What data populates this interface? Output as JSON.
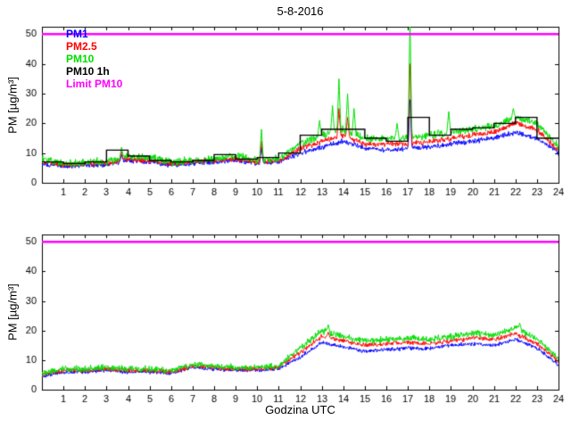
{
  "page": {
    "title": "5-8-2016"
  },
  "chart_data": [
    {
      "type": "line",
      "title": "5-8-2016",
      "ylabel": "PM [µg/m³]",
      "xlabel": "",
      "xlim": [
        0,
        24
      ],
      "ylim": [
        0,
        52.5
      ],
      "xticks": [
        1,
        2,
        3,
        4,
        5,
        6,
        7,
        8,
        9,
        10,
        11,
        12,
        13,
        14,
        15,
        16,
        17,
        18,
        19,
        20,
        21,
        22,
        23,
        24
      ],
      "yticks": [
        0,
        10,
        20,
        30,
        40,
        50
      ],
      "grid": false,
      "legend_position": "top-left-inside",
      "legend_labels": [
        "PM1",
        "PM2.5",
        "PM10",
        "PM10 1h",
        "Limit PM10"
      ],
      "limit": {
        "label": "Limit PM10",
        "value": 50,
        "color": "#ff00ff"
      },
      "x": [
        0,
        1,
        2,
        3,
        4,
        5,
        6,
        7,
        8,
        9,
        10,
        11,
        12,
        13,
        14,
        15,
        16,
        17,
        18,
        19,
        20,
        21,
        22,
        23,
        24
      ],
      "series": [
        {
          "name": "PM1",
          "color": "#0000ff",
          "noise": 0.7,
          "anchors": [
            6.5,
            5.5,
            6,
            6,
            7.5,
            7,
            6,
            6.5,
            7,
            7.5,
            6.5,
            7,
            10,
            12,
            14,
            11.5,
            11,
            11.5,
            12,
            13,
            14,
            15,
            17,
            15,
            10
          ],
          "spikes": [
            [
              3.7,
              9.5
            ],
            [
              10.2,
              12
            ],
            [
              17.1,
              28
            ]
          ]
        },
        {
          "name": "PM2.5",
          "color": "#ff0000",
          "noise": 0.8,
          "anchors": [
            7,
            6,
            6.5,
            6.5,
            8,
            7.5,
            6.5,
            7,
            7.5,
            8,
            7,
            7.5,
            11.5,
            14,
            16,
            13,
            13,
            13,
            14,
            15,
            16,
            17,
            20,
            18,
            11
          ],
          "spikes": [
            [
              3.7,
              10.5
            ],
            [
              10.2,
              14
            ],
            [
              13.8,
              25
            ],
            [
              14.2,
              22
            ],
            [
              17.1,
              40
            ]
          ]
        },
        {
          "name": "PM10",
          "color": "#00dd00",
          "noise": 1.1,
          "anchors": [
            8,
            6.5,
            7,
            7,
            9,
            8.5,
            7,
            7.5,
            8,
            9,
            7.5,
            8,
            13,
            16,
            18,
            15,
            15,
            15,
            16,
            17,
            18,
            19,
            22,
            20,
            12
          ],
          "spikes": [
            [
              3.7,
              12
            ],
            [
              10.2,
              18
            ],
            [
              12.9,
              21
            ],
            [
              13.5,
              26
            ],
            [
              13.8,
              35
            ],
            [
              14.2,
              30
            ],
            [
              14.5,
              25
            ],
            [
              16.5,
              20
            ],
            [
              17.1,
              56
            ],
            [
              18.9,
              24
            ],
            [
              21.9,
              25
            ]
          ]
        },
        {
          "name": "PM10 1h",
          "color": "#000000",
          "type": "step",
          "values": [
            7,
            6.5,
            7,
            11,
            9,
            7.5,
            7,
            7.5,
            9.5,
            8,
            8.5,
            10,
            16,
            18,
            18,
            15,
            14,
            22,
            16,
            18,
            18.5,
            20,
            22,
            15
          ]
        }
      ]
    },
    {
      "type": "line",
      "title": "",
      "ylabel": "PM [µg/m³]",
      "xlabel": "Godzina UTC",
      "xlim": [
        0,
        24
      ],
      "ylim": [
        0,
        52.5
      ],
      "xticks": [
        1,
        2,
        3,
        4,
        5,
        6,
        7,
        8,
        9,
        10,
        11,
        12,
        13,
        14,
        15,
        16,
        17,
        18,
        19,
        20,
        21,
        22,
        23,
        24
      ],
      "yticks": [
        0,
        10,
        20,
        30,
        40,
        50
      ],
      "grid": false,
      "legend_labels": [],
      "limit": {
        "label": "Limit PM10",
        "value": 50,
        "color": "#ff00ff"
      },
      "x": [
        0,
        1,
        2,
        3,
        4,
        5,
        6,
        7,
        8,
        9,
        10,
        11,
        12,
        13,
        14,
        15,
        16,
        17,
        18,
        19,
        20,
        21,
        22,
        23,
        24
      ],
      "series": [
        {
          "name": "PM1",
          "color": "#0000ff",
          "noise": 0.55,
          "anchors": [
            4.5,
            6,
            6,
            6.5,
            6,
            6,
            5.5,
            7.5,
            7,
            6.5,
            6.5,
            7,
            11,
            16,
            14.5,
            13,
            13.5,
            14,
            14,
            15,
            15.5,
            15,
            17,
            14,
            8.5
          ],
          "spikes": []
        },
        {
          "name": "PM2.5",
          "color": "#ff0000",
          "noise": 0.65,
          "anchors": [
            5,
            6.5,
            6.5,
            7,
            6.5,
            6.5,
            6,
            8,
            7.5,
            7,
            7,
            7.5,
            12.5,
            18,
            16.5,
            15,
            15.5,
            16,
            15.5,
            16.5,
            17.5,
            17,
            19,
            15.5,
            9.5
          ],
          "spikes": [
            [
              13.3,
              19.5
            ]
          ]
        },
        {
          "name": "PM10",
          "color": "#00dd00",
          "noise": 0.9,
          "anchors": [
            5.5,
            7,
            7,
            7.5,
            7,
            7,
            6.5,
            8.5,
            8,
            7.5,
            7.5,
            8,
            14,
            20,
            18,
            16.5,
            17,
            17.5,
            17,
            18,
            19,
            18.5,
            21,
            17,
            10.5
          ],
          "spikes": [
            [
              13.3,
              22
            ],
            [
              22.2,
              22.5
            ]
          ]
        }
      ]
    }
  ]
}
